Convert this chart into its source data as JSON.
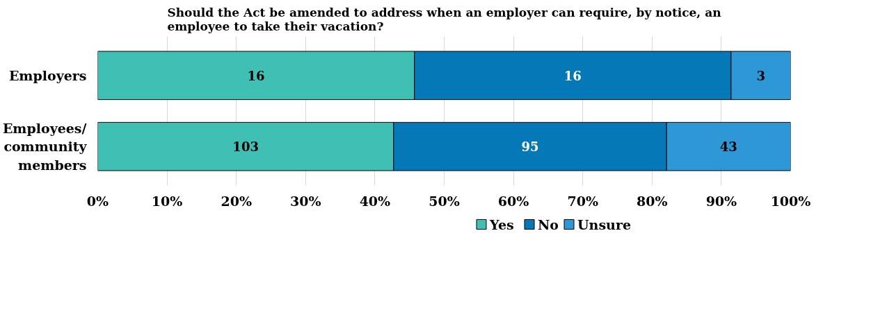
{
  "chart_data": {
    "type": "bar",
    "orientation": "horizontal",
    "stacked": true,
    "title": "Should the Act be amended to address when an employer can require, by notice, an employee to take their vacation?",
    "categories": [
      "Employers",
      "Employees/ community members"
    ],
    "series": [
      {
        "name": "Yes",
        "color": "#40bfb4",
        "values": [
          45.7,
          42.7
        ]
      },
      {
        "name": "No",
        "color": "#0579b8",
        "values": [
          45.7,
          39.4
        ]
      },
      {
        "name": "Unsure",
        "color": "#2e98d6",
        "values": [
          8.6,
          17.9
        ]
      }
    ],
    "annotations": [
      "16",
      "16",
      "3",
      "103",
      "95",
      "43"
    ],
    "xlim": [
      0,
      100
    ],
    "xticks": [
      {
        "value": 0,
        "label": "0%"
      },
      {
        "value": 10,
        "label": "10%"
      },
      {
        "value": 20,
        "label": "20%"
      },
      {
        "value": 30,
        "label": "30%"
      },
      {
        "value": 40,
        "label": "40%"
      },
      {
        "value": 50,
        "label": "50%"
      },
      {
        "value": 60,
        "label": "60%"
      },
      {
        "value": 70,
        "label": "70%"
      },
      {
        "value": 80,
        "label": "80%"
      },
      {
        "value": 90,
        "label": "90%"
      },
      {
        "value": 100,
        "label": "100%"
      }
    ],
    "grid": "x",
    "legend": "bottom"
  }
}
